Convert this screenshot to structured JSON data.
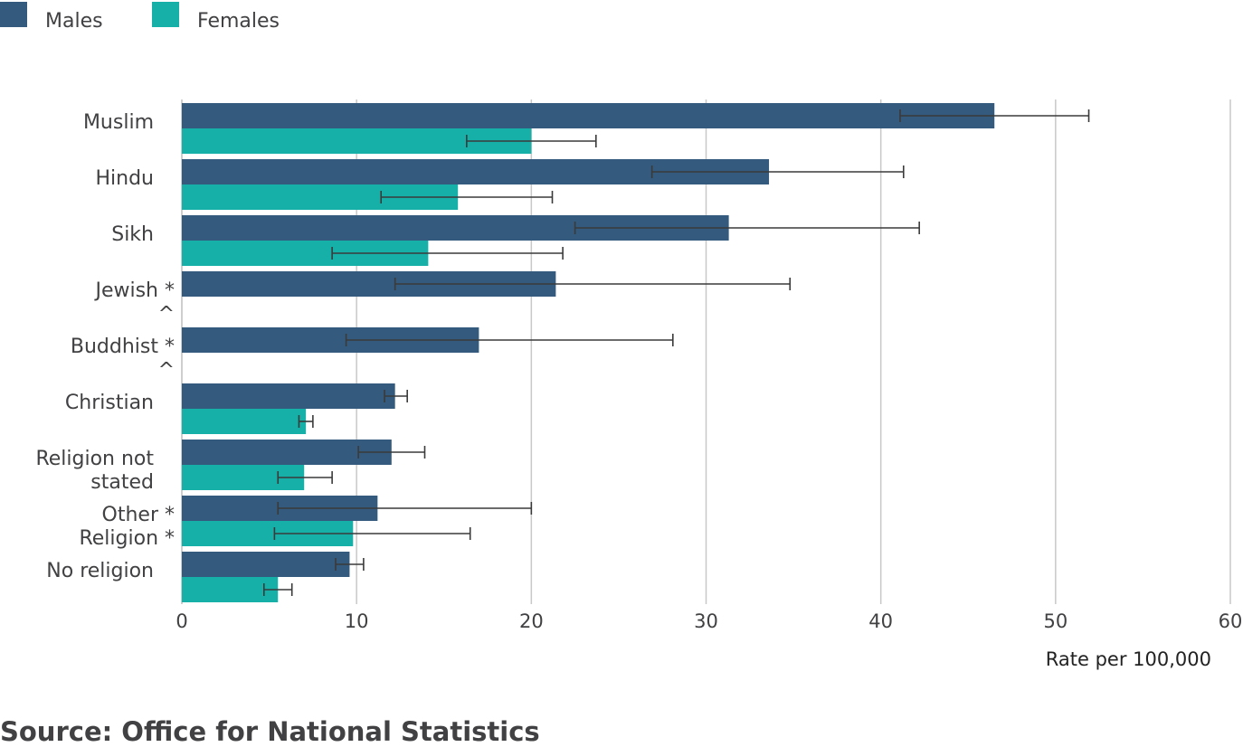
{
  "chart_data": {
    "type": "bar",
    "orientation": "horizontal",
    "categories": [
      [
        "Muslim"
      ],
      [
        "Hindu"
      ],
      [
        "Sikh"
      ],
      [
        "Jewish *",
        "^"
      ],
      [
        "Buddhist *",
        "^"
      ],
      [
        "Christian"
      ],
      [
        "Religion not",
        "stated"
      ],
      [
        "Other *",
        "Religion *"
      ],
      [
        "No religion"
      ]
    ],
    "series": [
      {
        "name": "Males",
        "color": "#345a7d",
        "values": [
          46.5,
          33.6,
          31.3,
          21.4,
          17.0,
          12.2,
          12.0,
          11.2,
          9.6
        ],
        "ci_low": [
          41.1,
          26.9,
          22.5,
          12.2,
          9.4,
          11.6,
          10.1,
          5.5,
          8.8
        ],
        "ci_high": [
          51.9,
          41.3,
          42.2,
          34.8,
          28.1,
          12.9,
          13.9,
          20.0,
          10.4
        ]
      },
      {
        "name": "Females",
        "color": "#17b0a8",
        "values": [
          20.0,
          15.8,
          14.1,
          null,
          null,
          7.1,
          7.0,
          9.8,
          5.5
        ],
        "ci_low": [
          16.3,
          11.4,
          8.6,
          null,
          null,
          6.7,
          5.5,
          5.3,
          4.7
        ],
        "ci_high": [
          23.7,
          21.2,
          21.8,
          null,
          null,
          7.5,
          8.6,
          16.5,
          6.3
        ]
      }
    ],
    "xlim": [
      0,
      60
    ],
    "xticks": [
      "0",
      "10",
      "20",
      "30",
      "40",
      "50",
      "60"
    ],
    "xlabel": "Rate per 100,000",
    "grid": "vertical",
    "legend_position": "top-left"
  },
  "source": "Source: Office for National Statistics"
}
